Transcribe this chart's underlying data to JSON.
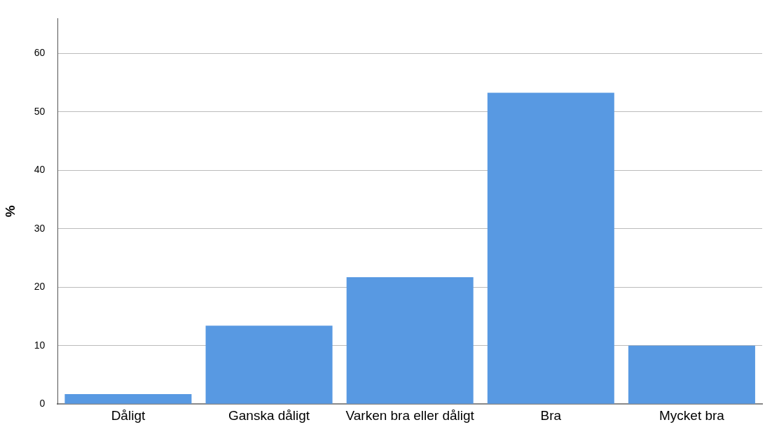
{
  "chart_data": {
    "type": "bar",
    "ylabel": "%",
    "categories": [
      "Dåligt",
      "Ganska dåligt",
      "Varken bra eller dåligt",
      "Bra",
      "Mycket bra"
    ],
    "values": [
      1.7,
      13.4,
      21.7,
      53.3,
      10.0
    ],
    "color": "#5899e2",
    "ylim": [
      0,
      66
    ],
    "yticks": [
      0,
      10,
      20,
      30,
      40,
      50,
      60
    ],
    "grid": "y",
    "legend": false
  }
}
